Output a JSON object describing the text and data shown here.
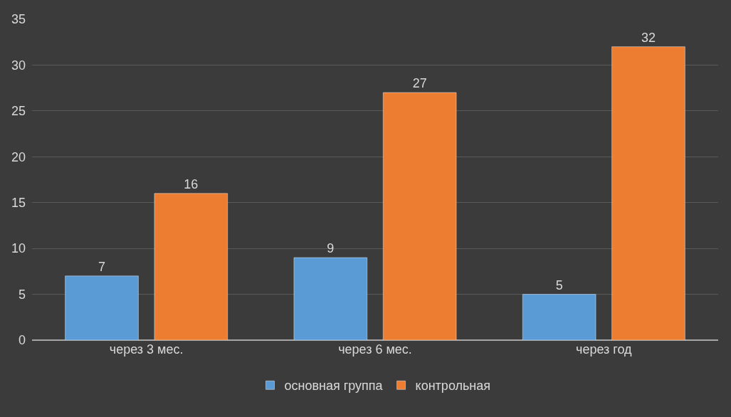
{
  "chart_data": {
    "type": "bar",
    "categories": [
      "через 3 мес.",
      "через 6 мес.",
      "через год"
    ],
    "series": [
      {
        "name": "основная группа",
        "color": "#5b9bd5",
        "values": [
          7,
          9,
          5
        ]
      },
      {
        "name": "контрольная",
        "color": "#ed7d31",
        "values": [
          16,
          27,
          32
        ]
      }
    ],
    "ylim": [
      0,
      35
    ],
    "yticks": [
      0,
      5,
      10,
      15,
      20,
      25,
      30,
      35
    ],
    "grid": "y",
    "legend": "bottom",
    "data_labels": true
  }
}
